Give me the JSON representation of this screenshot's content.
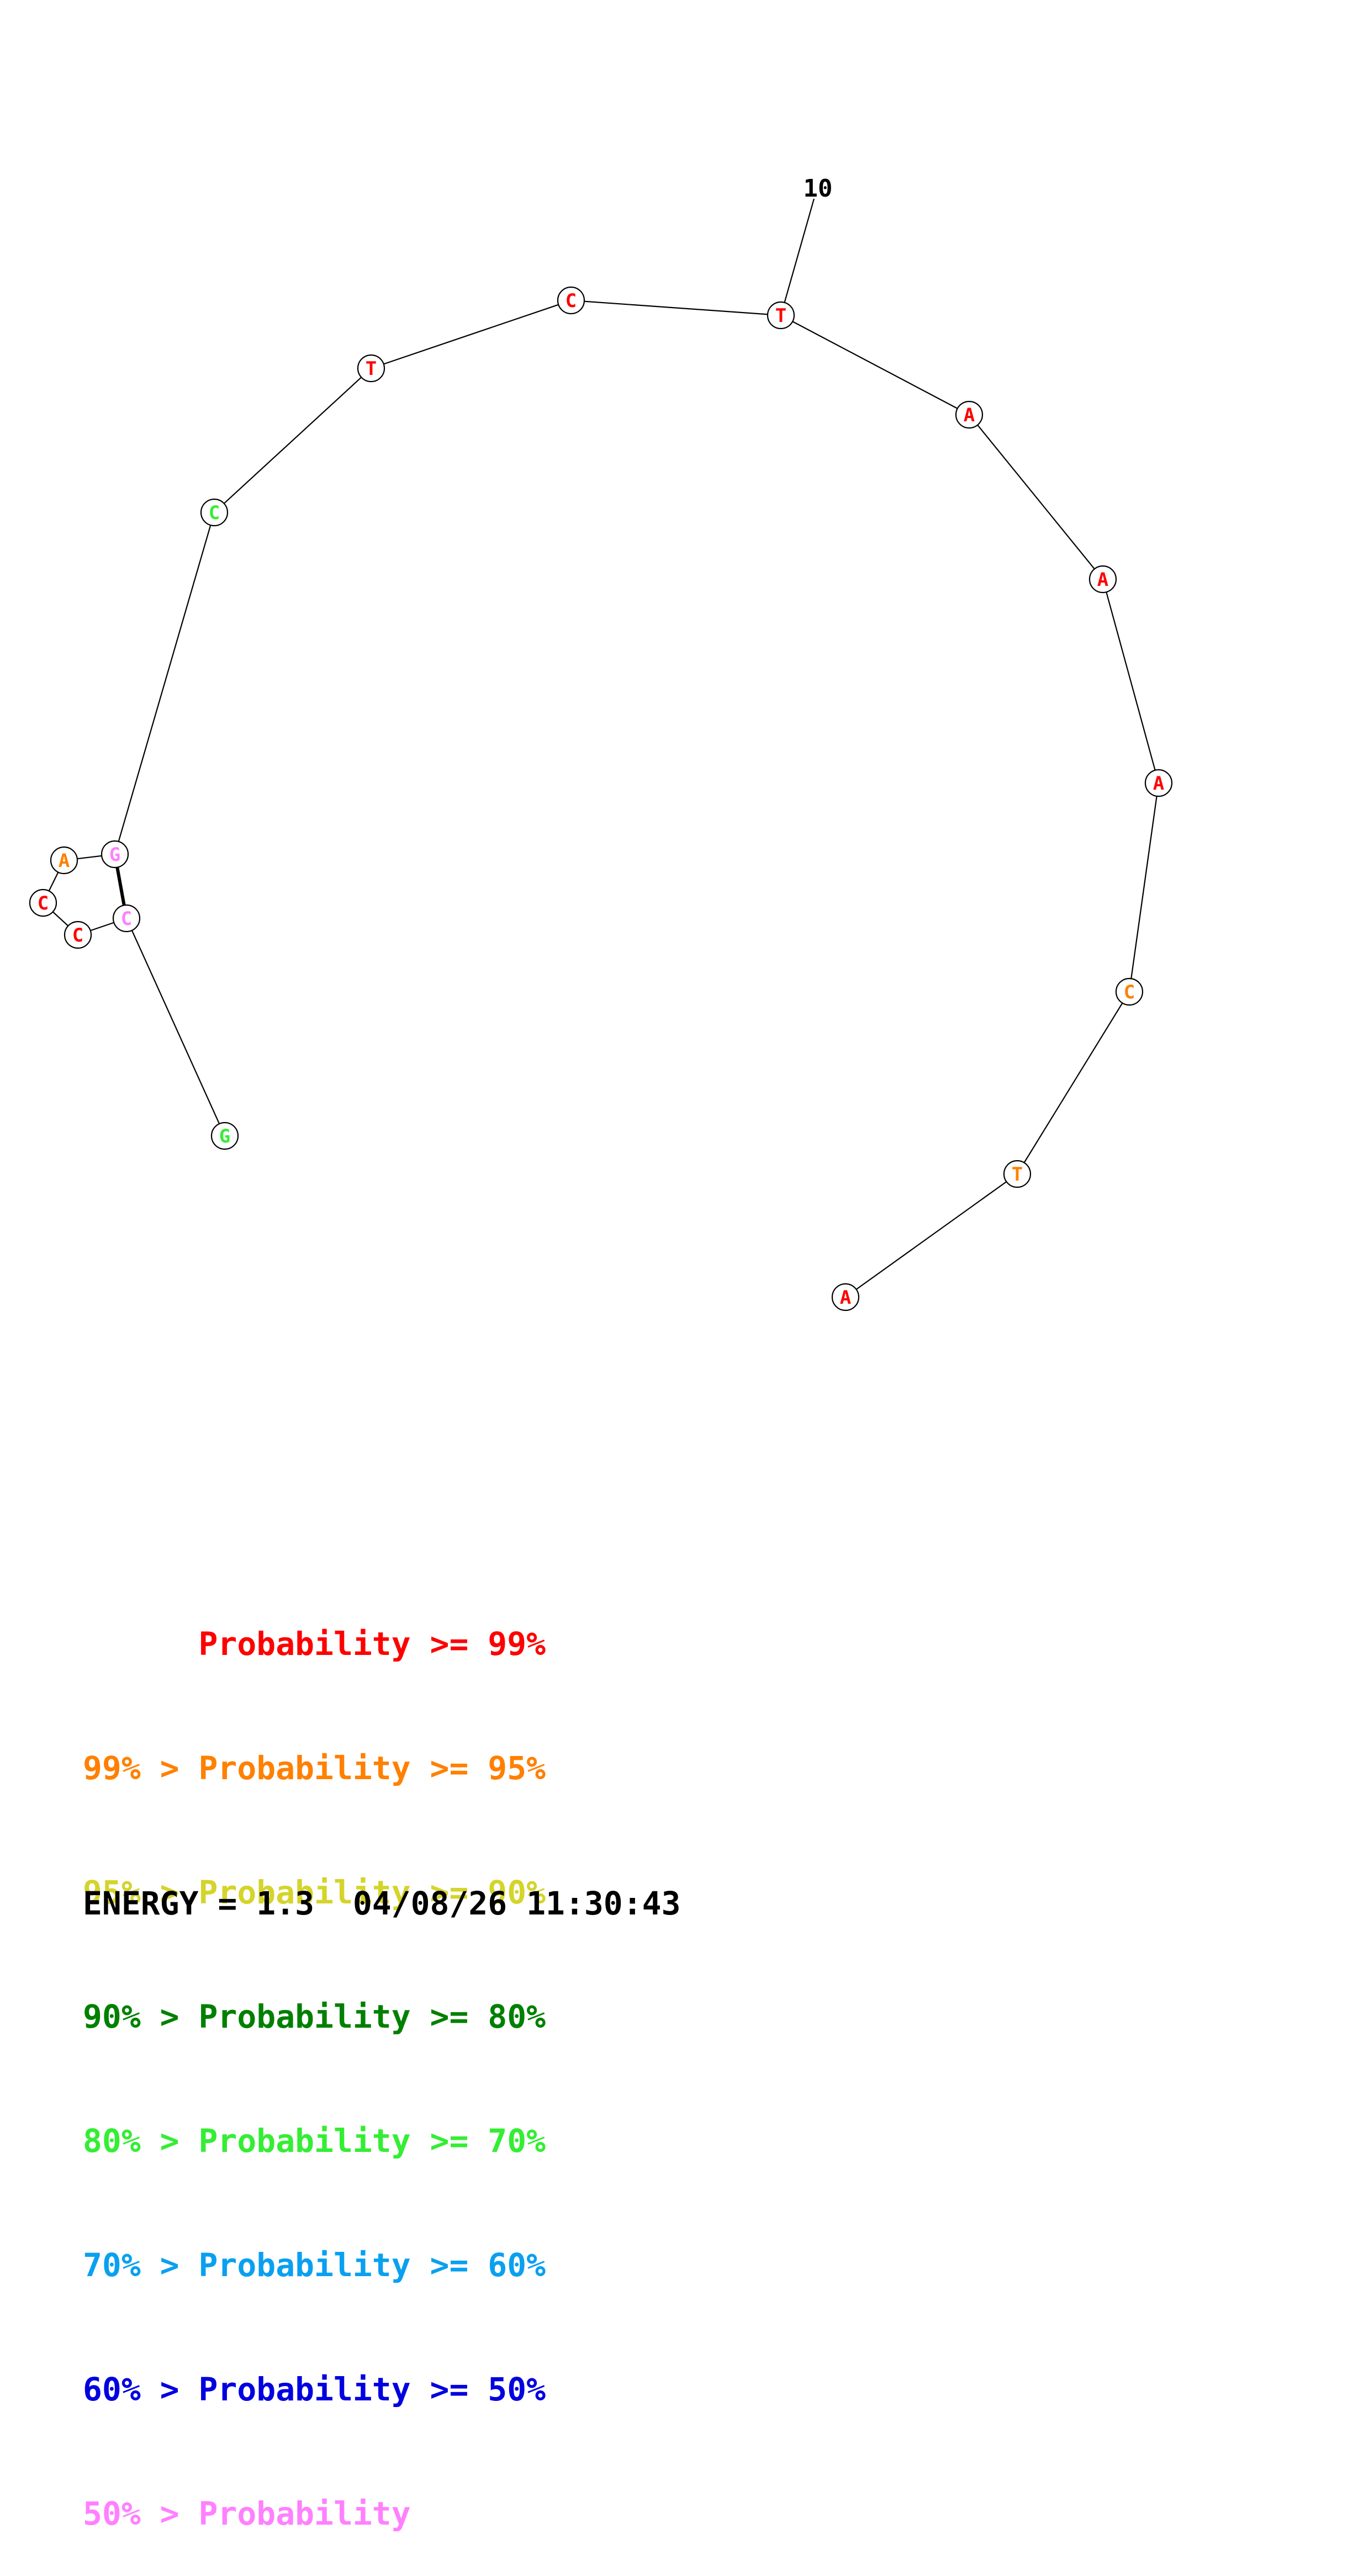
{
  "structure": {
    "position_label": "10",
    "bases": [
      {
        "letter": "G",
        "color": "#33ee33"
      },
      {
        "letter": "C",
        "color": "#ff80ff"
      },
      {
        "letter": "C",
        "color": "#ff0000"
      },
      {
        "letter": "C",
        "color": "#ff0000"
      },
      {
        "letter": "A",
        "color": "#ff8000"
      },
      {
        "letter": "G",
        "color": "#ff80ff"
      },
      {
        "letter": "C",
        "color": "#33ee33"
      },
      {
        "letter": "T",
        "color": "#ff0000"
      },
      {
        "letter": "C",
        "color": "#ff0000"
      },
      {
        "letter": "T",
        "color": "#ff0000"
      },
      {
        "letter": "A",
        "color": "#ff0000"
      },
      {
        "letter": "A",
        "color": "#ff0000"
      },
      {
        "letter": "A",
        "color": "#ff0000"
      },
      {
        "letter": "C",
        "color": "#ff8000"
      },
      {
        "letter": "T",
        "color": "#ff8000"
      },
      {
        "letter": "A",
        "color": "#ff0000"
      }
    ]
  },
  "legend": {
    "lines": [
      {
        "text": "      Probability >= 99%",
        "color": "#ff0000"
      },
      {
        "text": "99% > Probability >= 95%",
        "color": "#ff8000"
      },
      {
        "text": "95% > Probability >= 90%",
        "color": "#d4d42a"
      },
      {
        "text": "90% > Probability >= 80%",
        "color": "#008000"
      },
      {
        "text": "80% > Probability >= 70%",
        "color": "#33ee33"
      },
      {
        "text": "70% > Probability >= 60%",
        "color": "#0aa0f0"
      },
      {
        "text": "60% > Probability >= 50%",
        "color": "#0000e0"
      },
      {
        "text": "50% > Probability",
        "color": "#ff80ff"
      }
    ]
  },
  "energy_line": "ENERGY = 1.3  04/08/26 11:30:43"
}
